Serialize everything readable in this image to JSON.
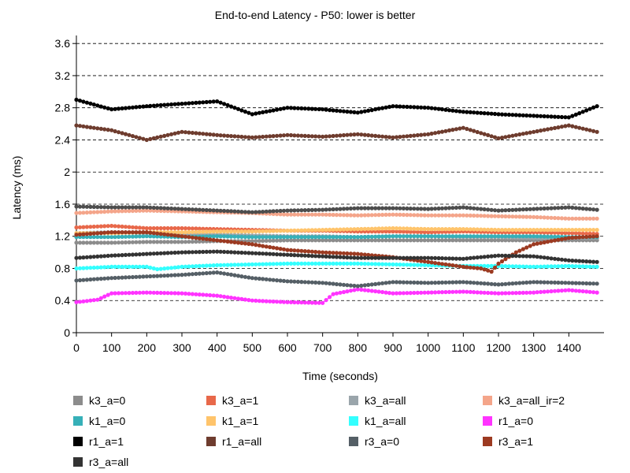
{
  "chart_data": {
    "type": "line",
    "title": "End-to-end Latency - P50: lower is better",
    "xlabel": "Time (seconds)",
    "ylabel": "Latency (ms)",
    "xlim": [
      0,
      1500
    ],
    "ylim": [
      0,
      3.7
    ],
    "x_ticks": [
      "0",
      "100",
      "200",
      "300",
      "400",
      "500",
      "600",
      "700",
      "800",
      "900",
      "1000",
      "1100",
      "1200",
      "1300",
      "1400"
    ],
    "y_ticks": [
      "0",
      "0.4",
      "0.8",
      "1.2",
      "1.6",
      "2",
      "2.4",
      "2.8",
      "3.2",
      "3.6"
    ],
    "grid": "horizontal-dashed",
    "legend_position": "bottom",
    "series": [
      {
        "name": "k3_a=0",
        "color": "#8c8c8c",
        "x": [
          0,
          100,
          200,
          300,
          400,
          500,
          600,
          700,
          800,
          900,
          1000,
          1100,
          1200,
          1300,
          1400,
          1480
        ],
        "y": [
          1.12,
          1.12,
          1.13,
          1.13,
          1.14,
          1.14,
          1.15,
          1.15,
          1.15,
          1.15,
          1.15,
          1.15,
          1.15,
          1.15,
          1.15,
          1.15
        ]
      },
      {
        "name": "k3_a=1",
        "color": "#e8684a",
        "x": [
          0,
          100,
          200,
          300,
          400,
          500,
          600,
          700,
          800,
          900,
          1000,
          1100,
          1200,
          1300,
          1400,
          1480
        ],
        "y": [
          1.31,
          1.33,
          1.3,
          1.3,
          1.29,
          1.28,
          1.27,
          1.27,
          1.26,
          1.26,
          1.25,
          1.26,
          1.25,
          1.25,
          1.24,
          1.23
        ]
      },
      {
        "name": "k3_a=all",
        "color": "#9aa5ab",
        "x": [
          0,
          100,
          200,
          300,
          400,
          500,
          600,
          700,
          800,
          900,
          1000,
          1100,
          1200,
          1300,
          1400,
          1480
        ],
        "y": [
          1.24,
          1.25,
          1.24,
          1.22,
          1.22,
          1.21,
          1.2,
          1.2,
          1.19,
          1.2,
          1.2,
          1.19,
          1.19,
          1.18,
          1.18,
          1.18
        ]
      },
      {
        "name": "k3_a=all_ir=2",
        "color": "#f4a58a",
        "x": [
          0,
          100,
          200,
          300,
          400,
          500,
          600,
          700,
          800,
          900,
          1000,
          1100,
          1200,
          1300,
          1400,
          1480
        ],
        "y": [
          1.49,
          1.51,
          1.52,
          1.51,
          1.5,
          1.49,
          1.47,
          1.47,
          1.46,
          1.47,
          1.46,
          1.46,
          1.45,
          1.44,
          1.42,
          1.42
        ]
      },
      {
        "name": "k1_a=0",
        "color": "#36b0b8",
        "x": [
          0,
          100,
          200,
          300,
          400,
          500,
          600,
          700,
          800,
          900,
          1000,
          1100,
          1200,
          1300,
          1400,
          1480
        ],
        "y": [
          1.19,
          1.19,
          1.2,
          1.19,
          1.2,
          1.19,
          1.19,
          1.19,
          1.19,
          1.2,
          1.2,
          1.2,
          1.2,
          1.2,
          1.19,
          1.19
        ]
      },
      {
        "name": "k1_a=1",
        "color": "#ffc46b",
        "x": [
          0,
          100,
          200,
          300,
          400,
          500,
          600,
          700,
          800,
          900,
          1000,
          1100,
          1200,
          1300,
          1400,
          1480
        ],
        "y": [
          1.24,
          1.24,
          1.25,
          1.25,
          1.26,
          1.26,
          1.27,
          1.28,
          1.29,
          1.3,
          1.29,
          1.29,
          1.28,
          1.28,
          1.28,
          1.28
        ]
      },
      {
        "name": "k1_a=all",
        "color": "#33ffff",
        "x": [
          0,
          100,
          200,
          230,
          300,
          400,
          500,
          600,
          700,
          800,
          900,
          1000,
          1100,
          1200,
          1300,
          1400,
          1480
        ],
        "y": [
          0.8,
          0.82,
          0.82,
          0.79,
          0.82,
          0.84,
          0.85,
          0.86,
          0.86,
          0.86,
          0.85,
          0.84,
          0.83,
          0.83,
          0.82,
          0.83,
          0.82
        ]
      },
      {
        "name": "r1_a=0",
        "color": "#ff33ff",
        "x": [
          0,
          60,
          100,
          200,
          300,
          400,
          500,
          600,
          700,
          730,
          800,
          900,
          1000,
          1100,
          1200,
          1300,
          1400,
          1480
        ],
        "y": [
          0.38,
          0.41,
          0.49,
          0.5,
          0.49,
          0.46,
          0.4,
          0.38,
          0.37,
          0.48,
          0.54,
          0.49,
          0.5,
          0.51,
          0.49,
          0.5,
          0.53,
          0.5
        ]
      },
      {
        "name": "r1_a=1",
        "color": "#000000",
        "x": [
          0,
          100,
          200,
          300,
          400,
          500,
          600,
          700,
          800,
          900,
          1000,
          1100,
          1200,
          1300,
          1400,
          1480
        ],
        "y": [
          2.9,
          2.78,
          2.82,
          2.85,
          2.88,
          2.72,
          2.8,
          2.78,
          2.74,
          2.82,
          2.8,
          2.75,
          2.72,
          2.7,
          2.68,
          2.82
        ]
      },
      {
        "name": "r1_a=all",
        "color": "#6e3c2e",
        "x": [
          0,
          100,
          200,
          300,
          400,
          500,
          600,
          700,
          800,
          900,
          1000,
          1100,
          1200,
          1300,
          1400,
          1480
        ],
        "y": [
          2.58,
          2.52,
          2.4,
          2.5,
          2.46,
          2.43,
          2.46,
          2.44,
          2.47,
          2.43,
          2.47,
          2.55,
          2.42,
          2.5,
          2.58,
          2.5
        ]
      },
      {
        "name": "r3_a=0",
        "color": "#555f66",
        "x": [
          0,
          100,
          200,
          300,
          400,
          500,
          600,
          700,
          800,
          900,
          1000,
          1100,
          1200,
          1300,
          1400,
          1480
        ],
        "y": [
          0.65,
          0.68,
          0.7,
          0.72,
          0.75,
          0.68,
          0.64,
          0.62,
          0.58,
          0.63,
          0.62,
          0.63,
          0.6,
          0.63,
          0.62,
          0.61
        ]
      },
      {
        "name": "r3_a=1",
        "color": "#9c3a21",
        "x": [
          0,
          100,
          200,
          300,
          400,
          500,
          600,
          700,
          800,
          900,
          1000,
          1100,
          1150,
          1180,
          1200,
          1250,
          1300,
          1400,
          1480
        ],
        "y": [
          1.22,
          1.25,
          1.25,
          1.2,
          1.15,
          1.1,
          1.03,
          1.0,
          0.98,
          0.94,
          0.88,
          0.82,
          0.8,
          0.76,
          0.86,
          1.0,
          1.1,
          1.18,
          1.2
        ]
      },
      {
        "name": "r3_a=all",
        "color": "#333333",
        "x": [
          0,
          100,
          200,
          300,
          400,
          500,
          600,
          700,
          800,
          900,
          1000,
          1100,
          1200,
          1300,
          1400,
          1480
        ],
        "y": [
          0.93,
          0.96,
          0.98,
          1.0,
          1.01,
          0.99,
          0.97,
          0.95,
          0.93,
          0.93,
          0.93,
          0.92,
          0.96,
          0.95,
          0.9,
          0.88
        ]
      },
      {
        "name": "",
        "color": "#4d4d4d",
        "x": [
          0,
          100,
          200,
          300,
          400,
          500,
          600,
          700,
          800,
          900,
          1000,
          1100,
          1200,
          1300,
          1400,
          1480
        ],
        "y": [
          1.57,
          1.56,
          1.56,
          1.54,
          1.52,
          1.5,
          1.52,
          1.53,
          1.55,
          1.55,
          1.54,
          1.56,
          1.52,
          1.54,
          1.56,
          1.53
        ]
      }
    ]
  }
}
